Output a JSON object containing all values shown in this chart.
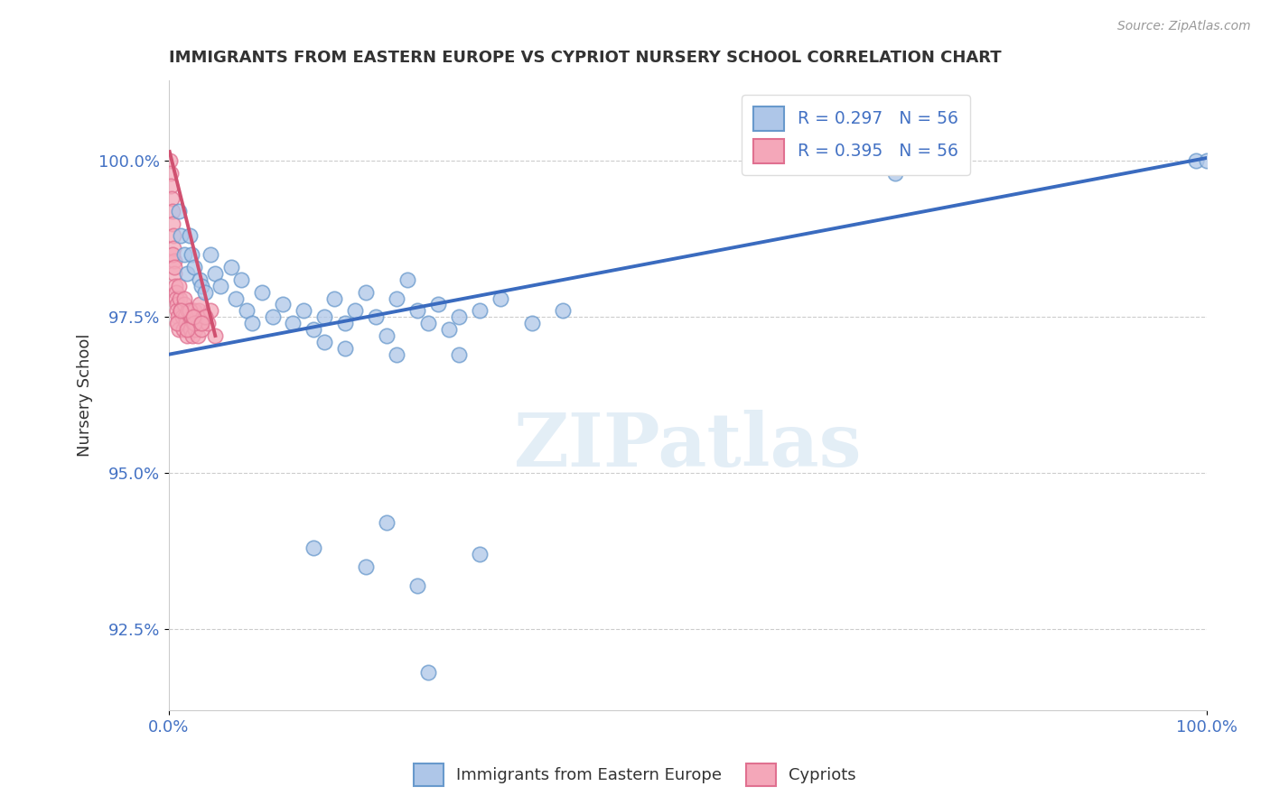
{
  "title": "IMMIGRANTS FROM EASTERN EUROPE VS CYPRIOT NURSERY SCHOOL CORRELATION CHART",
  "source": "Source: ZipAtlas.com",
  "ylabel": "Nursery School",
  "xlim": [
    0,
    100
  ],
  "ylim": [
    91.2,
    101.3
  ],
  "yticks": [
    92.5,
    95.0,
    97.5,
    100.0
  ],
  "ytick_labels": [
    "92.5%",
    "95.0%",
    "97.5%",
    "100.0%"
  ],
  "xticks": [
    0,
    100
  ],
  "xtick_labels": [
    "0.0%",
    "100.0%"
  ],
  "legend_entries": [
    {
      "color": "#aec6e8",
      "R": "0.297",
      "N": "56"
    },
    {
      "color": "#f4a7b9",
      "R": "0.395",
      "N": "56"
    }
  ],
  "legend_labels": [
    "Immigrants from Eastern Europe",
    "Cypriots"
  ],
  "blue_scatter": {
    "x": [
      1.0,
      1.2,
      1.5,
      1.8,
      2.0,
      2.2,
      2.5,
      3.0,
      3.2,
      3.5,
      4.0,
      4.5,
      5.0,
      6.0,
      6.5,
      7.0,
      7.5,
      8.0,
      9.0,
      10.0,
      11.0,
      12.0,
      13.0,
      14.0,
      15.0,
      16.0,
      17.0,
      18.0,
      19.0,
      20.0,
      21.0,
      22.0,
      23.0,
      24.0,
      25.0,
      26.0,
      27.0,
      28.0,
      30.0,
      32.0,
      35.0,
      38.0,
      15.0,
      17.0,
      22.0,
      28.0,
      70.0,
      72.0,
      99.0,
      100.0,
      14.0,
      19.0,
      21.0,
      24.0,
      30.0,
      25.0
    ],
    "y": [
      99.2,
      98.8,
      98.5,
      98.2,
      98.8,
      98.5,
      98.3,
      98.1,
      98.0,
      97.9,
      98.5,
      98.2,
      98.0,
      98.3,
      97.8,
      98.1,
      97.6,
      97.4,
      97.9,
      97.5,
      97.7,
      97.4,
      97.6,
      97.3,
      97.5,
      97.8,
      97.4,
      97.6,
      97.9,
      97.5,
      97.2,
      97.8,
      98.1,
      97.6,
      97.4,
      97.7,
      97.3,
      97.5,
      97.6,
      97.8,
      97.4,
      97.6,
      97.1,
      97.0,
      96.9,
      96.9,
      99.8,
      100.0,
      100.0,
      100.0,
      93.8,
      93.5,
      94.2,
      93.2,
      93.7,
      91.8
    ]
  },
  "pink_scatter": {
    "x": [
      0.15,
      0.2,
      0.25,
      0.3,
      0.35,
      0.4,
      0.45,
      0.5,
      0.55,
      0.6,
      0.65,
      0.7,
      0.75,
      0.8,
      0.85,
      0.9,
      0.95,
      1.0,
      1.1,
      1.2,
      1.3,
      1.4,
      1.5,
      1.6,
      1.7,
      1.8,
      1.9,
      2.0,
      2.1,
      2.2,
      2.3,
      2.4,
      2.5,
      2.6,
      2.7,
      2.8,
      2.9,
      3.0,
      3.2,
      3.5,
      3.8,
      4.0,
      0.4,
      0.6,
      1.0,
      1.5,
      2.0,
      2.5,
      3.0,
      3.5,
      0.8,
      1.2,
      1.8,
      2.4,
      3.2,
      4.5
    ],
    "y": [
      100.0,
      99.8,
      99.6,
      99.4,
      99.2,
      99.0,
      98.8,
      98.6,
      98.4,
      98.2,
      98.0,
      97.9,
      97.8,
      97.7,
      97.6,
      97.5,
      97.4,
      97.3,
      97.8,
      97.6,
      97.5,
      97.3,
      97.7,
      97.5,
      97.4,
      97.2,
      97.6,
      97.4,
      97.3,
      97.5,
      97.2,
      97.4,
      97.6,
      97.3,
      97.5,
      97.2,
      97.6,
      97.4,
      97.3,
      97.5,
      97.4,
      97.6,
      98.5,
      98.3,
      98.0,
      97.8,
      97.6,
      97.4,
      97.7,
      97.5,
      97.4,
      97.6,
      97.3,
      97.5,
      97.4,
      97.2
    ]
  },
  "blue_line": {
    "x0": 0,
    "x1": 100,
    "y0": 96.9,
    "y1": 100.05
  },
  "pink_line": {
    "x0": 0.1,
    "x1": 4.5,
    "y0": 100.15,
    "y1": 97.2
  },
  "watermark_text": "ZIPatlas",
  "blue_color": "#aec6e8",
  "pink_color": "#f4a7b9",
  "blue_edge": "#6899cc",
  "pink_edge": "#e07090",
  "line_blue": "#3a6bbf",
  "line_pink": "#d05070",
  "tick_color": "#4472c4",
  "label_color": "#333333",
  "background": "#ffffff",
  "grid_color": "#cccccc",
  "source_color": "#999999"
}
